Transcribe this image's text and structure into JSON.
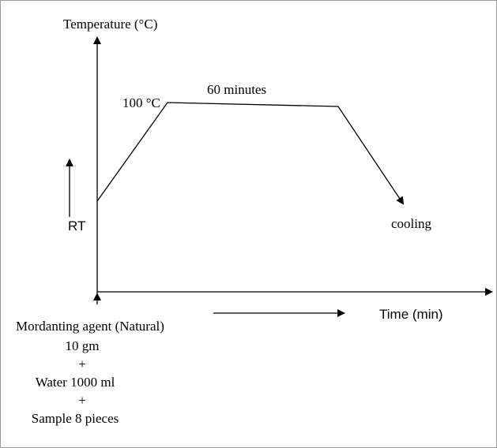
{
  "axes": {
    "y_label": "Temperature (°C)",
    "x_label": "Time (min)"
  },
  "profile": {
    "peak_label": "100 °C",
    "hold_label": "60 minutes",
    "start_label": "RT",
    "end_label": "cooling"
  },
  "recipe": {
    "title": "Mordanting agent (Natural)",
    "lines": [
      "10 gm",
      "+",
      "Water 1000 ml",
      "+",
      "Sample 8 pieces"
    ]
  }
}
